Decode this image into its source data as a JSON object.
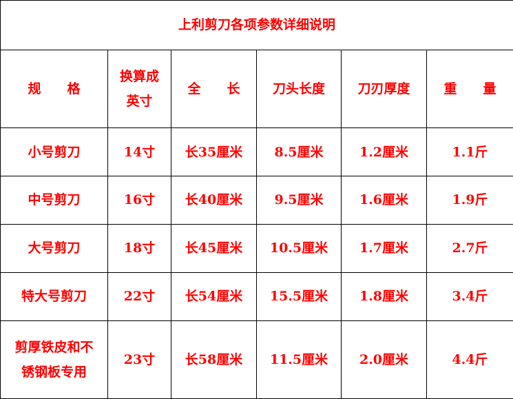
{
  "title": "上利剪刀各项参数详细说明",
  "headers": [
    "规　　格",
    "换算成\n英寸",
    "全　　长",
    "刀头长度",
    "刀刃厚度",
    "重　　量"
  ],
  "header_lines": {
    "inch_1": "换算成",
    "inch_2": "英寸"
  },
  "rows": [
    [
      "小号剪刀",
      "14寸",
      "长35厘米",
      "8.5厘米",
      "1.2厘米",
      "1.1斤"
    ],
    [
      "中号剪刀",
      "16寸",
      "长40厘米",
      "9.5厘米",
      "1.6厘米",
      "1.9斤"
    ],
    [
      "大号剪刀",
      "18寸",
      "长45厘米",
      "10.5厘米",
      "1.7厘米",
      "2.7斤"
    ],
    [
      "特大号剪刀",
      "22寸",
      "长54厘米",
      "15.5厘米",
      "1.8厘米",
      "3.4斤"
    ],
    [
      "剪厚铁皮和不锈钢板专用",
      "23寸",
      "长58厘米",
      "11.5厘米",
      "2.0厘米",
      "4.4斤"
    ]
  ],
  "last_row_spec_lines": [
    "剪厚铁皮和不",
    "锈钢板专用"
  ],
  "colors": {
    "text": "#ff0000",
    "border": "#000000"
  }
}
